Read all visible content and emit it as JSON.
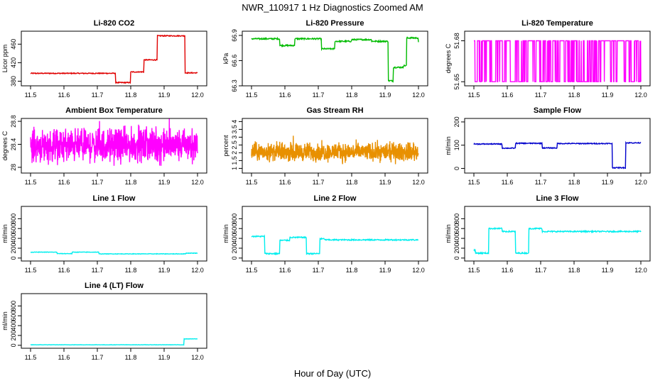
{
  "figure": {
    "title": "NWR_110917  1 Hz Diagnostics Zoomed AM",
    "xlabel": "Hour of Day (UTC)"
  },
  "chart_data": [
    {
      "type": "line",
      "title": "Li-820 CO2",
      "ylabel": "Licor ppm",
      "color": "#e00000",
      "xlim": [
        11.5,
        12.0
      ],
      "ylim": [
        370,
        488
      ],
      "xticks": [
        "11.5",
        "11.6",
        "11.7",
        "11.8",
        "11.9",
        "12.0"
      ],
      "yticks": [
        380,
        420,
        460
      ],
      "steps": [
        [
          11.5,
          397
        ],
        [
          11.755,
          377
        ],
        [
          11.8,
          400
        ],
        [
          11.84,
          426
        ],
        [
          11.88,
          478
        ],
        [
          11.963,
          398
        ],
        [
          12.0,
          398
        ]
      ],
      "noise": 1.0
    },
    {
      "type": "line",
      "title": "Li-820 Pressure",
      "ylabel": "kPa",
      "color": "#00bb00",
      "xlim": [
        11.5,
        12.0
      ],
      "ylim": [
        66.3,
        66.95
      ],
      "xticks": [
        "11.5",
        "11.6",
        "11.7",
        "11.8",
        "11.9",
        "12.0"
      ],
      "yticks": [
        66.3,
        66.6,
        66.9
      ],
      "steps": [
        [
          11.5,
          66.86
        ],
        [
          11.585,
          66.78
        ],
        [
          11.63,
          66.86
        ],
        [
          11.71,
          66.74
        ],
        [
          11.75,
          66.83
        ],
        [
          11.8,
          66.85
        ],
        [
          11.86,
          66.83
        ],
        [
          11.91,
          66.36
        ],
        [
          11.925,
          66.52
        ],
        [
          11.955,
          66.54
        ],
        [
          11.965,
          66.87
        ],
        [
          12.0,
          66.82
        ]
      ],
      "noise": 0.008
    },
    {
      "type": "line",
      "title": "Li-820 Temperature",
      "ylabel": "degrees C",
      "color": "#ff00ff",
      "xlim": [
        11.5,
        12.0
      ],
      "ylim": [
        51.647,
        51.687
      ],
      "xticks": [
        "11.5",
        "11.6",
        "11.7",
        "11.8",
        "11.9",
        "12.0"
      ],
      "yticks": [
        51.65,
        51.68
      ],
      "levels": [
        51.65,
        51.68
      ],
      "density": 0.18
    },
    {
      "type": "line",
      "title": "Ambient Box Temperature",
      "ylabel": "degrees C",
      "color": "#ff00ff",
      "xlim": [
        11.5,
        12.0
      ],
      "ylim": [
        27.9,
        28.85
      ],
      "xticks": [
        "11.5",
        "11.6",
        "11.7",
        "11.8",
        "11.9",
        "12.0"
      ],
      "yticks": [
        28.0,
        28.4,
        28.8
      ],
      "center": 28.38,
      "spread": 0.42
    },
    {
      "type": "line",
      "title": "Gas Stream RH",
      "ylabel": "percent",
      "color": "#e89000",
      "xlim": [
        11.5,
        12.0
      ],
      "ylim": [
        0.7,
        4.2
      ],
      "xticks": [
        "11.5",
        "11.6",
        "11.7",
        "11.8",
        "11.9",
        "12.0"
      ],
      "yticks": [
        1.0,
        1.5,
        2.0,
        2.5,
        3.0,
        3.5,
        4.0
      ],
      "center": 2.05,
      "spread": 0.85
    },
    {
      "type": "line",
      "title": "Sample Flow",
      "ylabel": "ml/min",
      "color": "#0000cc",
      "xlim": [
        11.5,
        12.0
      ],
      "ylim": [
        -20,
        215
      ],
      "xticks": [
        "11.5",
        "11.6",
        "11.7",
        "11.8",
        "11.9",
        "12.0"
      ],
      "yticks": [
        0,
        100,
        200
      ],
      "steps": [
        [
          11.5,
          105
        ],
        [
          11.585,
          87
        ],
        [
          11.625,
          108
        ],
        [
          11.705,
          88
        ],
        [
          11.75,
          107
        ],
        [
          11.915,
          3
        ],
        [
          11.955,
          110
        ],
        [
          12.0,
          110
        ]
      ],
      "noise": 2.0
    },
    {
      "type": "line",
      "title": "Line 1 Flow",
      "ylabel": "ml/min",
      "color": "#00eeee",
      "xlim": [
        11.5,
        12.0
      ],
      "ylim": [
        -60,
        1050
      ],
      "xticks": [
        "11.5",
        "11.6",
        "11.7",
        "11.8",
        "11.9",
        "12.0"
      ],
      "yticks": [
        0,
        200,
        400,
        600,
        800
      ],
      "steps": [
        [
          11.5,
          120
        ],
        [
          11.58,
          90
        ],
        [
          11.625,
          120
        ],
        [
          11.705,
          85
        ],
        [
          11.965,
          100
        ],
        [
          12.0,
          100
        ]
      ],
      "noise": 5
    },
    {
      "type": "line",
      "title": "Line 2 Flow",
      "ylabel": "ml/min",
      "color": "#00eeee",
      "xlim": [
        11.5,
        12.0
      ],
      "ylim": [
        -60,
        1050
      ],
      "xticks": [
        "11.5",
        "11.6",
        "11.7",
        "11.8",
        "11.9",
        "12.0"
      ],
      "yticks": [
        0,
        200,
        400,
        600,
        800
      ],
      "steps": [
        [
          11.5,
          440
        ],
        [
          11.54,
          90
        ],
        [
          11.585,
          360
        ],
        [
          11.615,
          420
        ],
        [
          11.665,
          90
        ],
        [
          11.705,
          390
        ],
        [
          11.72,
          370
        ],
        [
          12.0,
          370
        ]
      ],
      "noise": 12
    },
    {
      "type": "line",
      "title": "Line 3 Flow",
      "ylabel": "ml/min",
      "color": "#00eeee",
      "xlim": [
        11.5,
        12.0
      ],
      "ylim": [
        -60,
        1050
      ],
      "xticks": [
        "11.5",
        "11.6",
        "11.7",
        "11.8",
        "11.9",
        "12.0"
      ],
      "yticks": [
        0,
        200,
        400,
        600,
        800
      ],
      "steps": [
        [
          11.5,
          160
        ],
        [
          11.505,
          100
        ],
        [
          11.545,
          600
        ],
        [
          11.585,
          540
        ],
        [
          11.625,
          100
        ],
        [
          11.665,
          600
        ],
        [
          11.705,
          540
        ],
        [
          12.0,
          530
        ]
      ],
      "noise": 12
    },
    {
      "type": "line",
      "title": "Line 4 (LT) Flow",
      "ylabel": "ml/min",
      "color": "#00eeee",
      "xlim": [
        11.5,
        12.0
      ],
      "ylim": [
        -60,
        1050
      ],
      "xticks": [
        "11.5",
        "11.6",
        "11.7",
        "11.8",
        "11.9",
        "12.0"
      ],
      "yticks": [
        0,
        200,
        400,
        600,
        800
      ],
      "steps": [
        [
          11.5,
          10
        ],
        [
          11.96,
          130
        ],
        [
          12.0,
          130
        ]
      ],
      "noise": 3
    }
  ]
}
